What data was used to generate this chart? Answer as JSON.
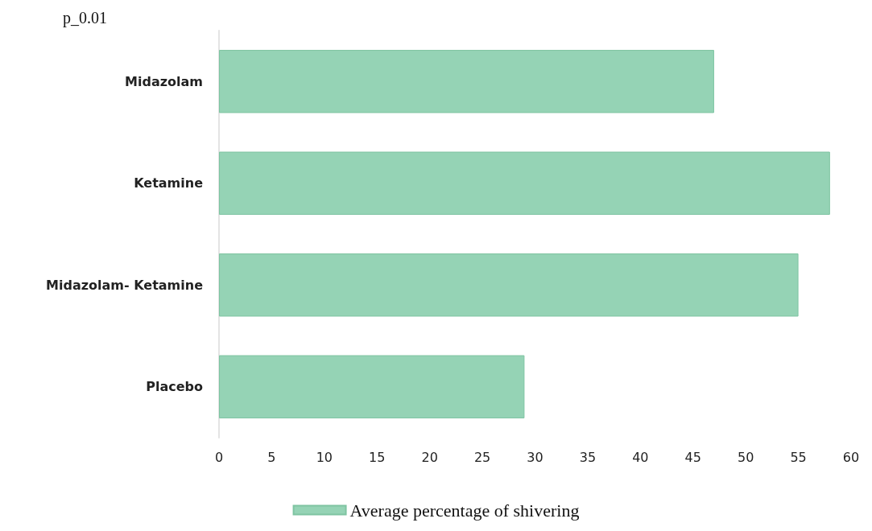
{
  "chart_data": {
    "type": "bar",
    "orientation": "horizontal",
    "categories": [
      "Midazolam",
      "Ketamine",
      "Midazolam- Ketamine",
      "Placebo"
    ],
    "series": [
      {
        "name": "Average percentage of shivering",
        "color": "#95d3b5",
        "values": [
          47,
          58,
          55,
          29
        ]
      }
    ],
    "xlim": [
      0,
      60
    ],
    "xticks": [
      0,
      5,
      10,
      15,
      20,
      25,
      30,
      35,
      40,
      45,
      50,
      55,
      60
    ],
    "grid": false,
    "legend": "bottom",
    "annotations": [
      "p_0.01"
    ]
  }
}
